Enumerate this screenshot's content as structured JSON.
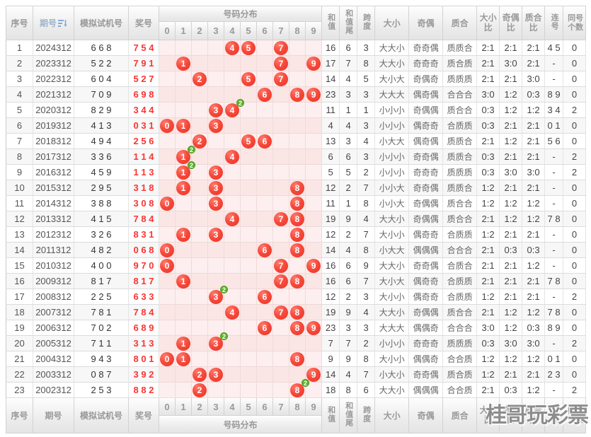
{
  "header": {
    "seq": "序号",
    "period": "期号",
    "test": "模拟试机号",
    "prize": "奖号",
    "distribution": "号码分布",
    "digits": [
      "0",
      "1",
      "2",
      "3",
      "4",
      "5",
      "6",
      "7",
      "8",
      "9"
    ],
    "sum": "和值",
    "sum_tail": "和值尾",
    "span": "跨度",
    "size": "大小",
    "parity": "奇偶",
    "prime": "质合",
    "size_ratio": "大小比",
    "parity_ratio": "奇偶比",
    "prime_ratio": "质合比",
    "consecutive": "连号",
    "same_count": "同号个数"
  },
  "colors": {
    "ball_red": "#f64a3c",
    "prize_red": "#fb3434",
    "badge_green": "#5cb32b",
    "dist_pink": "#fdefef",
    "header_text": "#999999",
    "sort_icon_blue": "#85a9dc"
  },
  "watermark": "桂哥玩彩票",
  "rows": [
    {
      "seq": "1",
      "period": "2024312",
      "test": "6 6 8",
      "prize": "7 5 4",
      "balls": [
        {
          "d": 4
        },
        {
          "d": 5
        },
        {
          "d": 7
        }
      ],
      "sum": "16",
      "tail": "6",
      "span": "3",
      "size": "大大小",
      "parity": "奇奇偶",
      "prime": "质质合",
      "sizeRatio": "2:1",
      "parityRatio": "2:1",
      "primeRatio": "2:1",
      "consec": "4 5",
      "same": "0"
    },
    {
      "seq": "2",
      "period": "2023312",
      "test": "5 2 2",
      "prize": "7 9 1",
      "balls": [
        {
          "d": 1
        },
        {
          "d": 7
        },
        {
          "d": 9
        }
      ],
      "sum": "17",
      "tail": "7",
      "span": "8",
      "size": "大大小",
      "parity": "奇奇奇",
      "prime": "质合质",
      "sizeRatio": "2:1",
      "parityRatio": "3:0",
      "primeRatio": "2:1",
      "consec": "-",
      "same": "0"
    },
    {
      "seq": "3",
      "period": "2022312",
      "test": "6 0 4",
      "prize": "5 2 7",
      "balls": [
        {
          "d": 2
        },
        {
          "d": 5
        },
        {
          "d": 7
        }
      ],
      "sum": "14",
      "tail": "4",
      "span": "5",
      "size": "大小大",
      "parity": "奇偶奇",
      "prime": "质质质",
      "sizeRatio": "2:1",
      "parityRatio": "2:1",
      "primeRatio": "3:0",
      "consec": "-",
      "same": "0"
    },
    {
      "seq": "4",
      "period": "2021312",
      "test": "7 0 9",
      "prize": "6 9 8",
      "balls": [
        {
          "d": 6
        },
        {
          "d": 8
        },
        {
          "d": 9
        }
      ],
      "sum": "23",
      "tail": "3",
      "span": "3",
      "size": "大大大",
      "parity": "偶奇偶",
      "prime": "合合合",
      "sizeRatio": "3:0",
      "parityRatio": "1:2",
      "primeRatio": "0:3",
      "consec": "8 9",
      "same": "0"
    },
    {
      "seq": "5",
      "period": "2020312",
      "test": "8 2 9",
      "prize": "3 4 4",
      "balls": [
        {
          "d": 3
        },
        {
          "d": 4,
          "x": "2"
        }
      ],
      "sum": "11",
      "tail": "1",
      "span": "1",
      "size": "小小小",
      "parity": "奇偶偶",
      "prime": "质合合",
      "sizeRatio": "0:3",
      "parityRatio": "1:2",
      "primeRatio": "1:2",
      "consec": "3 4",
      "same": "2"
    },
    {
      "seq": "6",
      "period": "2019312",
      "test": "4 1 3",
      "prize": "0 3 1",
      "balls": [
        {
          "d": 0
        },
        {
          "d": 1
        },
        {
          "d": 3
        }
      ],
      "sum": "4",
      "tail": "4",
      "span": "3",
      "size": "小小小",
      "parity": "偶奇奇",
      "prime": "合质质",
      "sizeRatio": "0:3",
      "parityRatio": "2:1",
      "primeRatio": "2:1",
      "consec": "0 1",
      "same": "0"
    },
    {
      "seq": "7",
      "period": "2018312",
      "test": "4 9 4",
      "prize": "2 5 6",
      "balls": [
        {
          "d": 2
        },
        {
          "d": 5
        },
        {
          "d": 6
        }
      ],
      "sum": "13",
      "tail": "3",
      "span": "4",
      "size": "小大大",
      "parity": "偶奇偶",
      "prime": "质质合",
      "sizeRatio": "2:1",
      "parityRatio": "1:2",
      "primeRatio": "2:1",
      "consec": "5 6",
      "same": "0"
    },
    {
      "seq": "8",
      "period": "2017312",
      "test": "3 3 6",
      "prize": "1 1 4",
      "balls": [
        {
          "d": 1,
          "x": "2"
        },
        {
          "d": 4
        }
      ],
      "sum": "6",
      "tail": "6",
      "span": "3",
      "size": "小小小",
      "parity": "奇奇偶",
      "prime": "质质合",
      "sizeRatio": "0:3",
      "parityRatio": "2:1",
      "primeRatio": "2:1",
      "consec": "-",
      "same": "2"
    },
    {
      "seq": "9",
      "period": "2016312",
      "test": "4 5 9",
      "prize": "1 1 3",
      "balls": [
        {
          "d": 1,
          "x": "2"
        },
        {
          "d": 3
        }
      ],
      "sum": "5",
      "tail": "5",
      "span": "2",
      "size": "小小小",
      "parity": "奇奇奇",
      "prime": "质质质",
      "sizeRatio": "0:3",
      "parityRatio": "3:0",
      "primeRatio": "3:0",
      "consec": "-",
      "same": "2"
    },
    {
      "seq": "10",
      "period": "2015312",
      "test": "2 9 5",
      "prize": "3 1 8",
      "balls": [
        {
          "d": 1
        },
        {
          "d": 3
        },
        {
          "d": 8
        }
      ],
      "sum": "12",
      "tail": "2",
      "span": "7",
      "size": "小小大",
      "parity": "奇奇偶",
      "prime": "质质合",
      "sizeRatio": "1:2",
      "parityRatio": "2:1",
      "primeRatio": "2:1",
      "consec": "-",
      "same": "0"
    },
    {
      "seq": "11",
      "period": "2014312",
      "test": "3 8 8",
      "prize": "3 0 8",
      "balls": [
        {
          "d": 0
        },
        {
          "d": 3
        },
        {
          "d": 8
        }
      ],
      "sum": "11",
      "tail": "1",
      "span": "8",
      "size": "小小大",
      "parity": "奇偶偶",
      "prime": "质合合",
      "sizeRatio": "1:2",
      "parityRatio": "1:2",
      "primeRatio": "1:2",
      "consec": "-",
      "same": "0"
    },
    {
      "seq": "12",
      "period": "2013312",
      "test": "4 1 5",
      "prize": "7 8 4",
      "balls": [
        {
          "d": 4
        },
        {
          "d": 7
        },
        {
          "d": 8
        }
      ],
      "sum": "19",
      "tail": "9",
      "span": "4",
      "size": "大大小",
      "parity": "奇偶偶",
      "prime": "质合合",
      "sizeRatio": "2:1",
      "parityRatio": "1:2",
      "primeRatio": "1:2",
      "consec": "7 8",
      "same": "0"
    },
    {
      "seq": "13",
      "period": "2012312",
      "test": "3 2 6",
      "prize": "8 3 1",
      "balls": [
        {
          "d": 1
        },
        {
          "d": 3
        },
        {
          "d": 8
        }
      ],
      "sum": "12",
      "tail": "2",
      "span": "7",
      "size": "大小小",
      "parity": "偶奇奇",
      "prime": "合质质",
      "sizeRatio": "1:2",
      "parityRatio": "2:1",
      "primeRatio": "2:1",
      "consec": "-",
      "same": "0"
    },
    {
      "seq": "14",
      "period": "2011312",
      "test": "4 8 2",
      "prize": "0 6 8",
      "balls": [
        {
          "d": 0
        },
        {
          "d": 6
        },
        {
          "d": 8
        }
      ],
      "sum": "14",
      "tail": "4",
      "span": "8",
      "size": "小大大",
      "parity": "偶偶偶",
      "prime": "合合合",
      "sizeRatio": "2:1",
      "parityRatio": "0:3",
      "primeRatio": "0:3",
      "consec": "-",
      "same": "0"
    },
    {
      "seq": "15",
      "period": "2010312",
      "test": "4 0 0",
      "prize": "9 7 0",
      "balls": [
        {
          "d": 0
        },
        {
          "d": 7
        },
        {
          "d": 9
        }
      ],
      "sum": "16",
      "tail": "6",
      "span": "9",
      "size": "大大小",
      "parity": "奇奇偶",
      "prime": "合质合",
      "sizeRatio": "2:1",
      "parityRatio": "2:1",
      "primeRatio": "1:2",
      "consec": "-",
      "same": "0"
    },
    {
      "seq": "16",
      "period": "2009312",
      "test": "8 1 7",
      "prize": "8 1 7",
      "balls": [
        {
          "d": 1
        },
        {
          "d": 7
        },
        {
          "d": 8
        }
      ],
      "sum": "16",
      "tail": "6",
      "span": "7",
      "size": "大小大",
      "parity": "偶奇奇",
      "prime": "合质质",
      "sizeRatio": "2:1",
      "parityRatio": "2:1",
      "primeRatio": "2:1",
      "consec": "7 8",
      "same": "0"
    },
    {
      "seq": "17",
      "period": "2008312",
      "test": "2 2 5",
      "prize": "6 3 3",
      "balls": [
        {
          "d": 3,
          "x": "2"
        },
        {
          "d": 6
        }
      ],
      "sum": "12",
      "tail": "2",
      "span": "3",
      "size": "大小小",
      "parity": "偶奇奇",
      "prime": "合质质",
      "sizeRatio": "1:2",
      "parityRatio": "2:1",
      "primeRatio": "2:1",
      "consec": "-",
      "same": "2"
    },
    {
      "seq": "18",
      "period": "2007312",
      "test": "7 8 1",
      "prize": "7 8 4",
      "balls": [
        {
          "d": 4
        },
        {
          "d": 7
        },
        {
          "d": 8
        }
      ],
      "sum": "19",
      "tail": "9",
      "span": "4",
      "size": "大大小",
      "parity": "奇偶偶",
      "prime": "质合合",
      "sizeRatio": "2:1",
      "parityRatio": "1:2",
      "primeRatio": "1:2",
      "consec": "7 8",
      "same": "0"
    },
    {
      "seq": "19",
      "period": "2006312",
      "test": "7 0 2",
      "prize": "6 8 9",
      "balls": [
        {
          "d": 6
        },
        {
          "d": 8
        },
        {
          "d": 9
        }
      ],
      "sum": "23",
      "tail": "3",
      "span": "3",
      "size": "大大大",
      "parity": "偶偶奇",
      "prime": "合合合",
      "sizeRatio": "3:0",
      "parityRatio": "1:2",
      "primeRatio": "0:3",
      "consec": "8 9",
      "same": "0"
    },
    {
      "seq": "20",
      "period": "2005312",
      "test": "7 1 1",
      "prize": "3 1 3",
      "balls": [
        {
          "d": 1
        },
        {
          "d": 3,
          "x": "2"
        }
      ],
      "sum": "7",
      "tail": "7",
      "span": "2",
      "size": "小小小",
      "parity": "奇奇奇",
      "prime": "质质质",
      "sizeRatio": "0:3",
      "parityRatio": "3:0",
      "primeRatio": "3:0",
      "consec": "-",
      "same": "2"
    },
    {
      "seq": "21",
      "period": "2004312",
      "test": "9 4 3",
      "prize": "8 0 1",
      "balls": [
        {
          "d": 0
        },
        {
          "d": 1
        },
        {
          "d": 8
        }
      ],
      "sum": "9",
      "tail": "9",
      "span": "8",
      "size": "大小小",
      "parity": "偶偶奇",
      "prime": "合合质",
      "sizeRatio": "1:2",
      "parityRatio": "1:2",
      "primeRatio": "1:2",
      "consec": "0 1",
      "same": "0"
    },
    {
      "seq": "22",
      "period": "2003312",
      "test": "0 8 7",
      "prize": "3 9 2",
      "balls": [
        {
          "d": 2
        },
        {
          "d": 3
        },
        {
          "d": 9
        }
      ],
      "sum": "14",
      "tail": "4",
      "span": "7",
      "size": "小大小",
      "parity": "奇奇偶",
      "prime": "质合质",
      "sizeRatio": "1:2",
      "parityRatio": "2:1",
      "primeRatio": "2:1",
      "consec": "2 3",
      "same": "0"
    },
    {
      "seq": "23",
      "period": "2002312",
      "test": "2 5 3",
      "prize": "8 8 2",
      "balls": [
        {
          "d": 2
        },
        {
          "d": 8,
          "x": "2"
        }
      ],
      "sum": "18",
      "tail": "8",
      "span": "6",
      "size": "大大小",
      "parity": "偶偶偶",
      "prime": "合合质",
      "sizeRatio": "2:1",
      "parityRatio": "0:3",
      "primeRatio": "1:2",
      "consec": "-",
      "same": "2"
    }
  ]
}
